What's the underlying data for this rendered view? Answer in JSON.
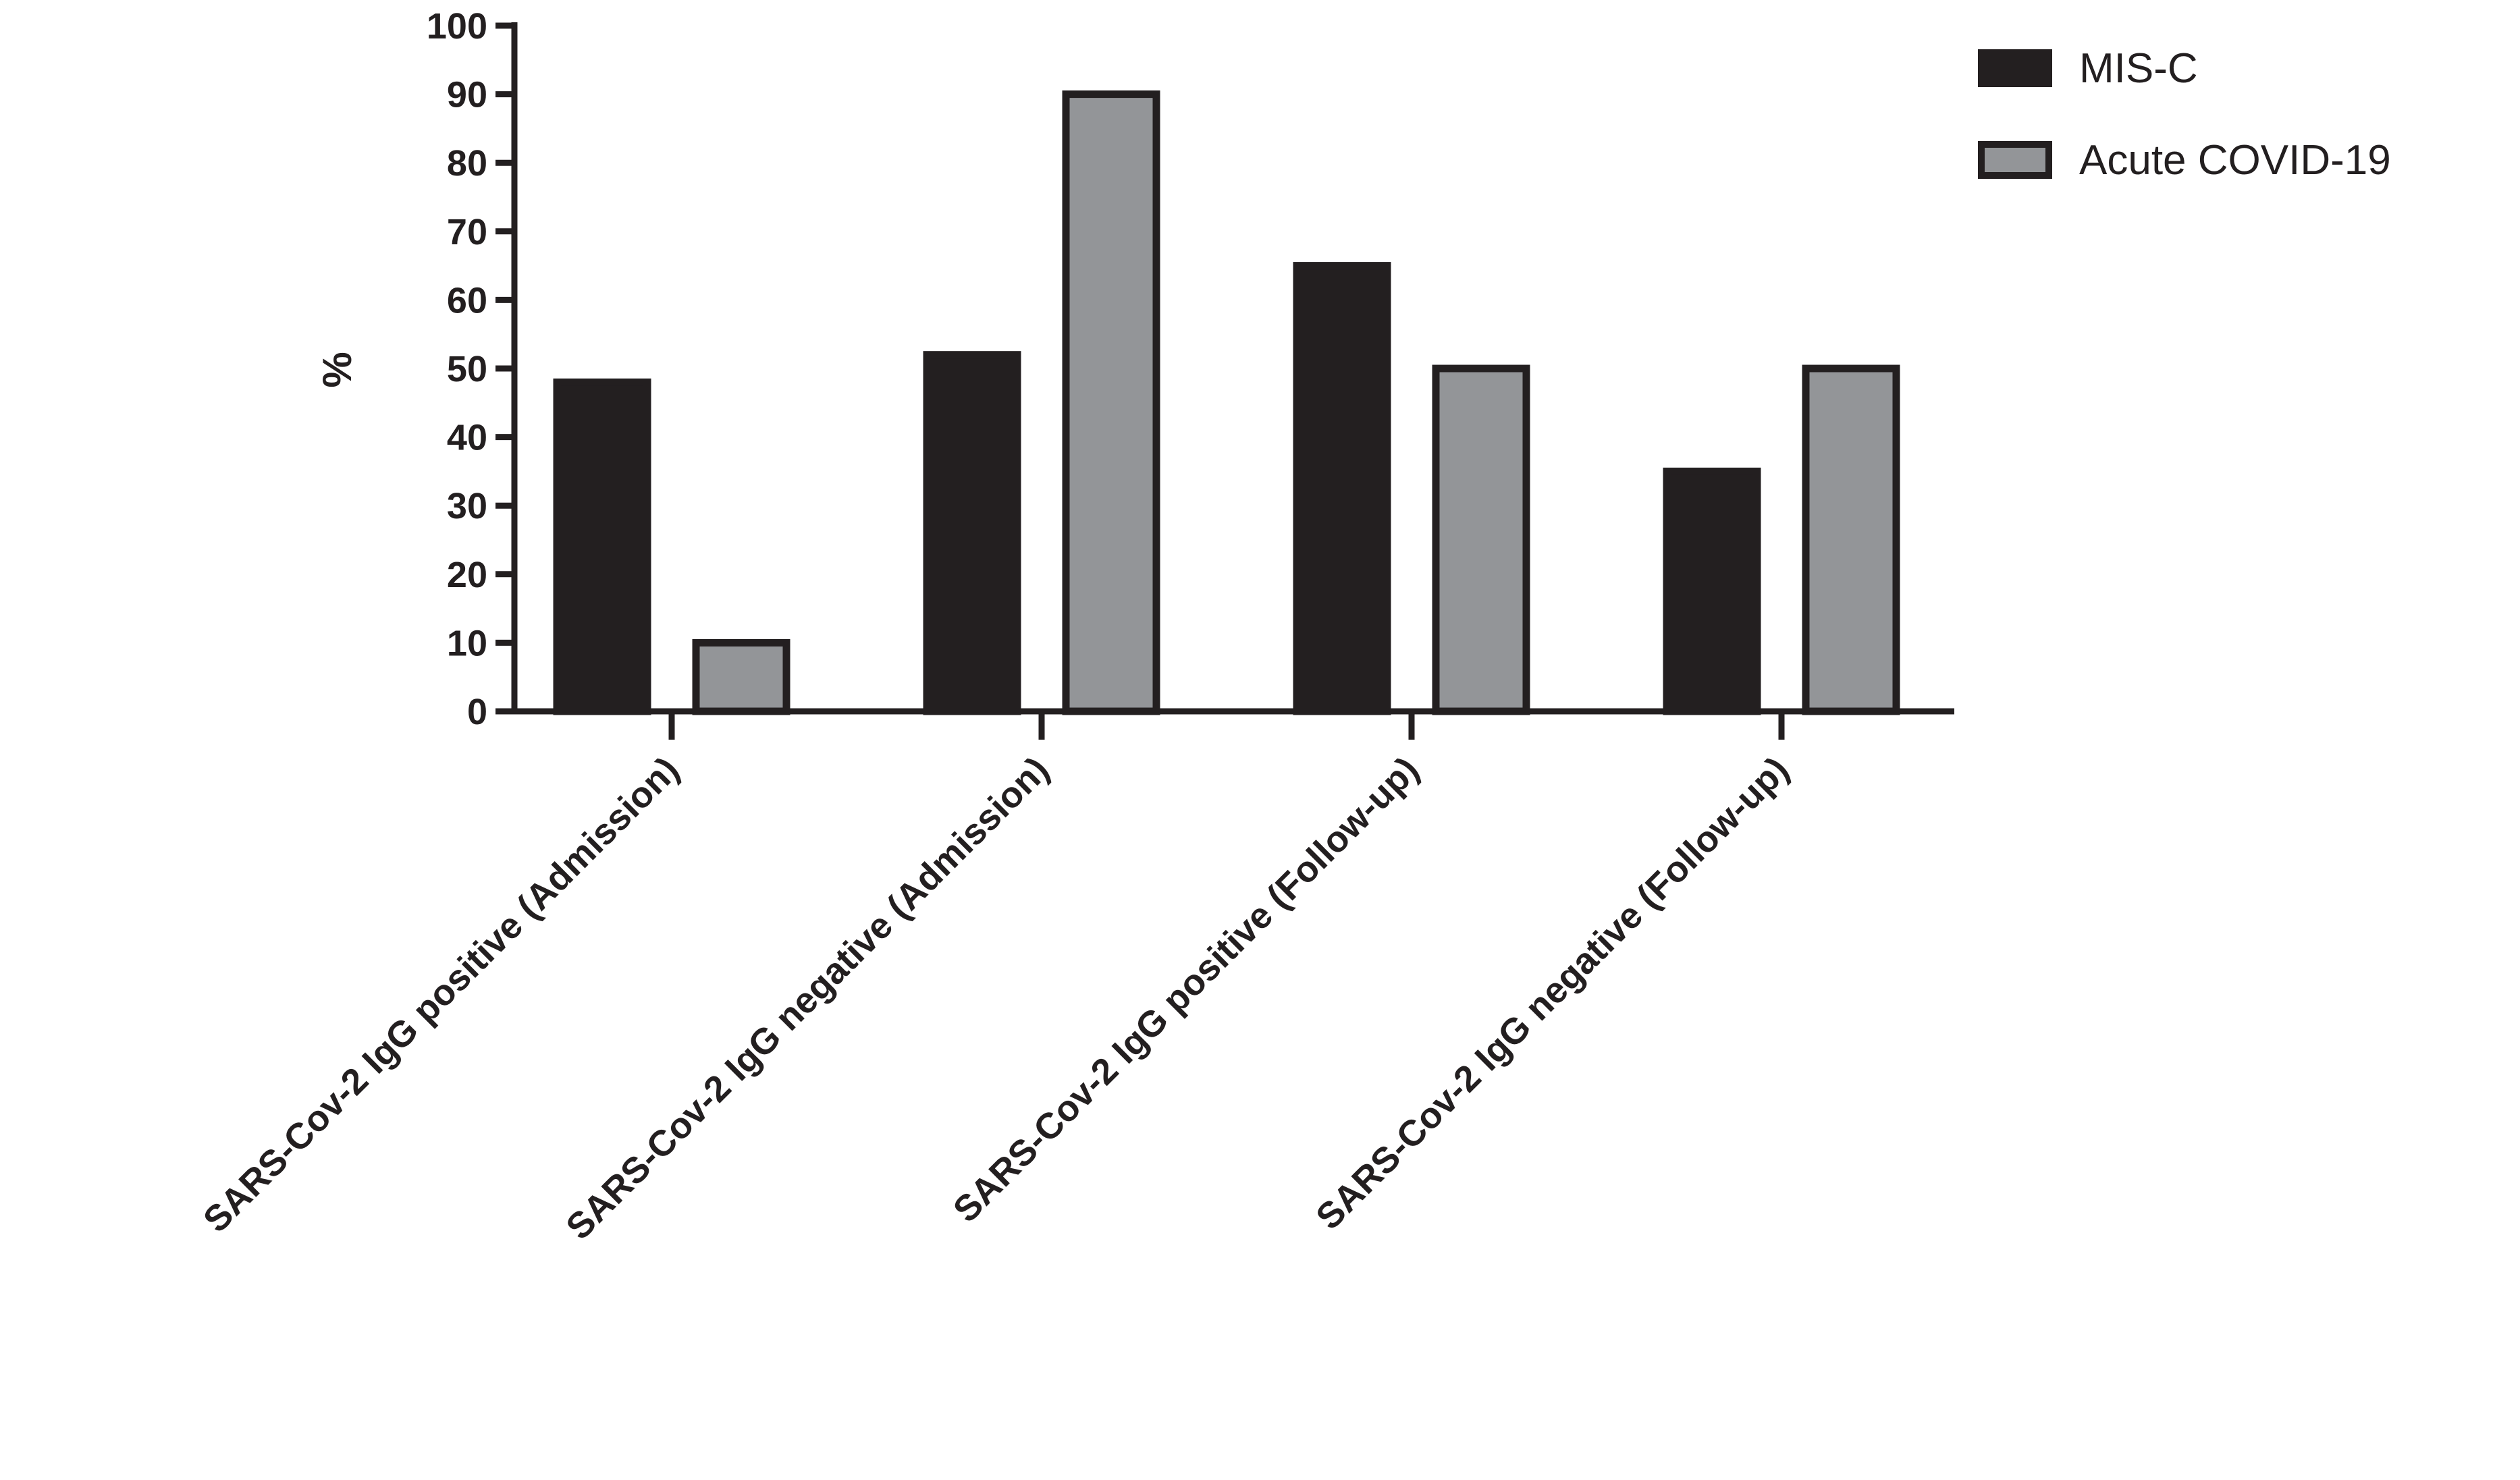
{
  "chart_data": {
    "type": "bar",
    "title": "",
    "xlabel": "",
    "ylabel": "%",
    "ylim": [
      0,
      100
    ],
    "yticks": [
      0,
      10,
      20,
      30,
      40,
      50,
      60,
      70,
      80,
      90,
      100
    ],
    "grid": false,
    "legend_position": "top-right",
    "categories": [
      "SARS-Cov-2 IgG positive (Admission)",
      "SARS-Cov-2 IgG negative (Admission)",
      "SARS-Cov-2 IgG positive (Follow-up)",
      "SARS-Cov-2 IgG negative (Follow-up)"
    ],
    "series": [
      {
        "name": "MIS-C",
        "color": "#231f20",
        "values": [
          48,
          52,
          65,
          35
        ]
      },
      {
        "name": "Acute COVID-19",
        "color": "#939598",
        "values": [
          10,
          90,
          50,
          50
        ]
      }
    ],
    "axis_color": "#231f20"
  }
}
